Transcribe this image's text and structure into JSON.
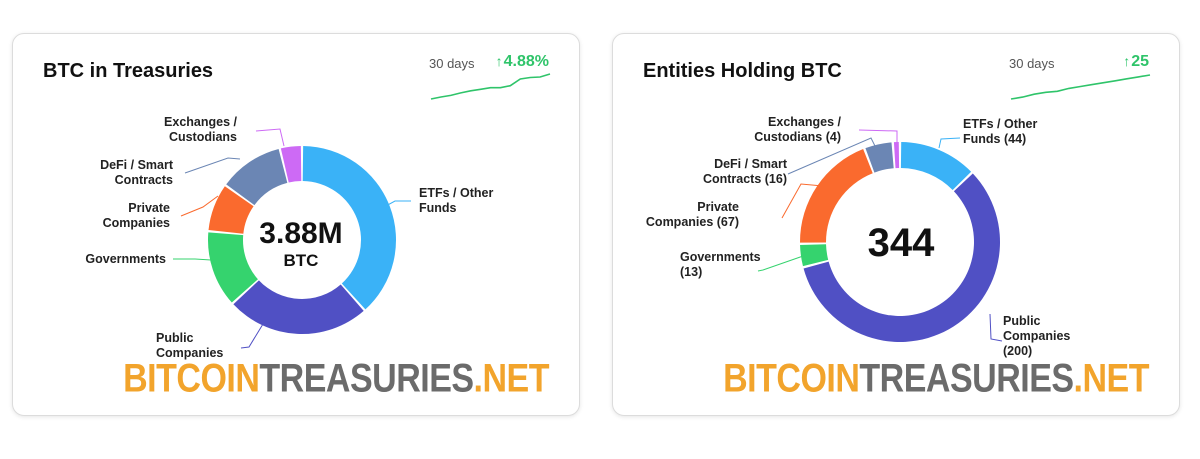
{
  "colors": {
    "etfs": "#3ab2f7",
    "public": "#5050c4",
    "governments": "#35d36e",
    "private": "#fa6a2e",
    "defi": "#6b86b4",
    "exchanges": "#cd6af5",
    "spark": "#2fc46a"
  },
  "brand": {
    "part1": "BITCOIN",
    "part2": "TREASURIES",
    "part3": ".NET"
  },
  "card1": {
    "title": "BTC in Treasuries",
    "period": "30 days",
    "change_arrow": "↑",
    "change": "4.88%",
    "center_value": "3.88M",
    "center_unit": "BTC",
    "labels": {
      "etfs": "ETFs / Other\nFunds",
      "public": "Public\nCompanies",
      "governments": "Governments",
      "private": "Private\nCompanies",
      "defi": "DeFi / Smart\nContracts",
      "exchanges": "Exchanges /\nCustodians"
    },
    "sparkline": [
      0,
      0.4,
      0.7,
      1.2,
      1.6,
      1.9,
      2.2,
      2.2,
      2.6,
      3.9,
      4.2,
      4.3,
      4.88
    ]
  },
  "card2": {
    "title": "Entities Holding BTC",
    "period": "30 days",
    "change_arrow": "↑",
    "change": "25",
    "center_value": "344",
    "labels": {
      "etfs": "ETFs / Other\nFunds (44)",
      "public": "Public\nCompanies\n(200)",
      "governments": "Governments\n(13)",
      "private": "Private\nCompanies (67)",
      "defi": "DeFi / Smart\nContracts (16)",
      "exchanges": "Exchanges /\nCustodians (4)"
    },
    "sparkline": [
      0,
      2,
      5,
      7,
      8,
      11,
      13,
      15,
      17,
      19,
      21,
      23,
      25
    ]
  },
  "chart_data": [
    {
      "type": "pie",
      "title": "BTC in Treasuries",
      "categories": [
        "ETFs / Other Funds",
        "Public Companies",
        "Governments",
        "Private Companies",
        "DeFi / Smart Contracts",
        "Exchanges / Custodians"
      ],
      "values": [
        35.3,
        22.8,
        12.2,
        7.7,
        10.4,
        3.5
      ],
      "center_label": "3.88M BTC"
    },
    {
      "type": "pie",
      "title": "Entities Holding BTC",
      "categories": [
        "ETFs / Other Funds",
        "Public Companies",
        "Governments",
        "Private Companies",
        "DeFi / Smart Contracts",
        "Exchanges / Custodians"
      ],
      "values": [
        44,
        200,
        13,
        67,
        16,
        4
      ],
      "center_label": "344"
    }
  ]
}
